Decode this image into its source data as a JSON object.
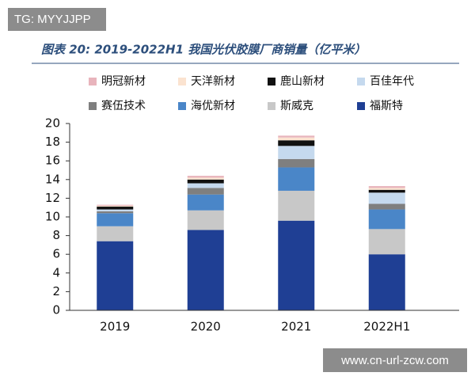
{
  "chart_data": {
    "type": "stacked-bar",
    "title": "图表 20: 2019-2022H1 我国光伏胶膜厂商销量（亿平米）",
    "categories": [
      "2019",
      "2020",
      "2021",
      "2022H1"
    ],
    "series": [
      {
        "name": "明冠新材",
        "color": "#e8b4bc",
        "values": [
          0.1,
          0.2,
          0.2,
          0.2
        ]
      },
      {
        "name": "天洋新材",
        "color": "#fbe3d0",
        "values": [
          0.1,
          0.2,
          0.3,
          0.2
        ]
      },
      {
        "name": "鹿山新材",
        "color": "#111111",
        "values": [
          0.3,
          0.4,
          0.6,
          0.3
        ]
      },
      {
        "name": "百佳年代",
        "color": "#c5d9ee",
        "values": [
          0.2,
          0.5,
          1.4,
          1.2
        ]
      },
      {
        "name": "赛伍技术",
        "color": "#7f7f7f",
        "values": [
          0.2,
          0.7,
          0.9,
          0.6
        ]
      },
      {
        "name": "海优新材",
        "color": "#4a86c8",
        "values": [
          1.4,
          1.7,
          2.5,
          2.1
        ]
      },
      {
        "name": "斯威克",
        "color": "#c8c8c8",
        "values": [
          1.6,
          2.1,
          3.2,
          2.7
        ]
      },
      {
        "name": "福斯特",
        "color": "#1f3f94",
        "values": [
          7.4,
          8.6,
          9.6,
          6.0
        ]
      }
    ],
    "ylim": [
      0,
      20
    ],
    "yticks": [
      0,
      2,
      4,
      6,
      8,
      10,
      12,
      14,
      16,
      18,
      20
    ]
  },
  "watermarks": [
    "TG: MYYJJPP",
    "www.cn-url-zcw.com"
  ]
}
